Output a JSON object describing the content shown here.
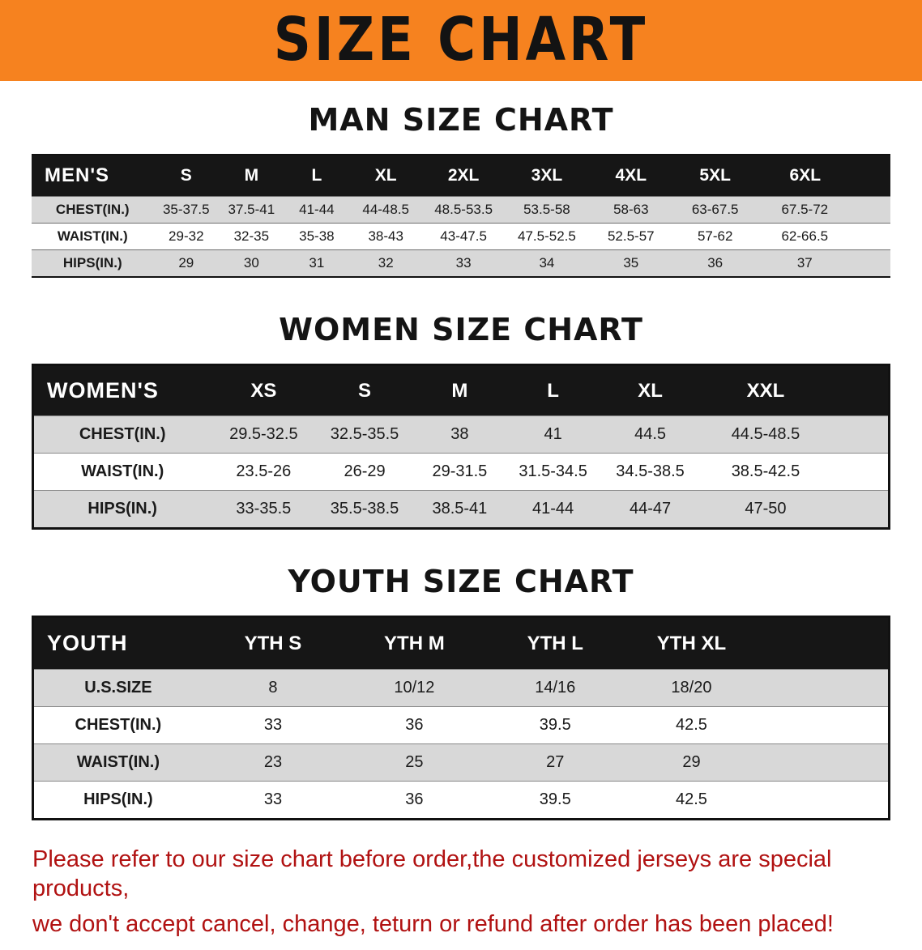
{
  "banner": {
    "title": "SIZE CHART"
  },
  "colors": {
    "banner_bg": "#F6821F",
    "header_bg": "#161616",
    "row_gray": "#D8D8D8",
    "row_white": "#FFFFFF",
    "heading_text": "#141414",
    "disclaimer_red": "#B11212"
  },
  "men": {
    "heading": "MAN SIZE CHART",
    "table": {
      "header": [
        "MEN'S",
        "S",
        "M",
        "L",
        "XL",
        "2XL",
        "3XL",
        "4XL",
        "5XL",
        "6XL"
      ],
      "rows": [
        [
          "CHEST(IN.)",
          "35-37.5",
          "37.5-41",
          "41-44",
          "44-48.5",
          "48.5-53.5",
          "53.5-58",
          "58-63",
          "63-67.5",
          "67.5-72"
        ],
        [
          "WAIST(IN.)",
          "29-32",
          "32-35",
          "35-38",
          "38-43",
          "43-47.5",
          "47.5-52.5",
          "52.5-57",
          "57-62",
          "62-66.5"
        ],
        [
          "HIPS(IN.)",
          "29",
          "30",
          "31",
          "32",
          "33",
          "34",
          "35",
          "36",
          "37"
        ]
      ]
    }
  },
  "women": {
    "heading": "WOMEN SIZE CHART",
    "table": {
      "header": [
        "WOMEN'S",
        "XS",
        "S",
        "M",
        "L",
        "XL",
        "XXL"
      ],
      "rows": [
        [
          "CHEST(IN.)",
          "29.5-32.5",
          "32.5-35.5",
          "38",
          "41",
          "44.5",
          "44.5-48.5"
        ],
        [
          "WAIST(IN.)",
          "23.5-26",
          "26-29",
          "29-31.5",
          "31.5-34.5",
          "34.5-38.5",
          "38.5-42.5"
        ],
        [
          "HIPS(IN.)",
          "33-35.5",
          "35.5-38.5",
          "38.5-41",
          "41-44",
          "44-47",
          "47-50"
        ]
      ]
    }
  },
  "youth": {
    "heading": "YOUTH SIZE CHART",
    "table": {
      "header": [
        "YOUTH",
        "YTH S",
        "YTH M",
        "YTH L",
        "YTH XL"
      ],
      "rows": [
        [
          "U.S.SIZE",
          "8",
          "10/12",
          "14/16",
          "18/20"
        ],
        [
          "CHEST(IN.)",
          "33",
          "36",
          "39.5",
          "42.5"
        ],
        [
          "WAIST(IN.)",
          "23",
          "25",
          "27",
          "29"
        ],
        [
          "HIPS(IN.)",
          "33",
          "36",
          "39.5",
          "42.5"
        ]
      ]
    }
  },
  "disclaimer": {
    "line1": "Please refer to our size chart before order,the customized jerseys are special products,",
    "line2": "we don't accept cancel, change, teturn or refund after order has been placed!"
  }
}
